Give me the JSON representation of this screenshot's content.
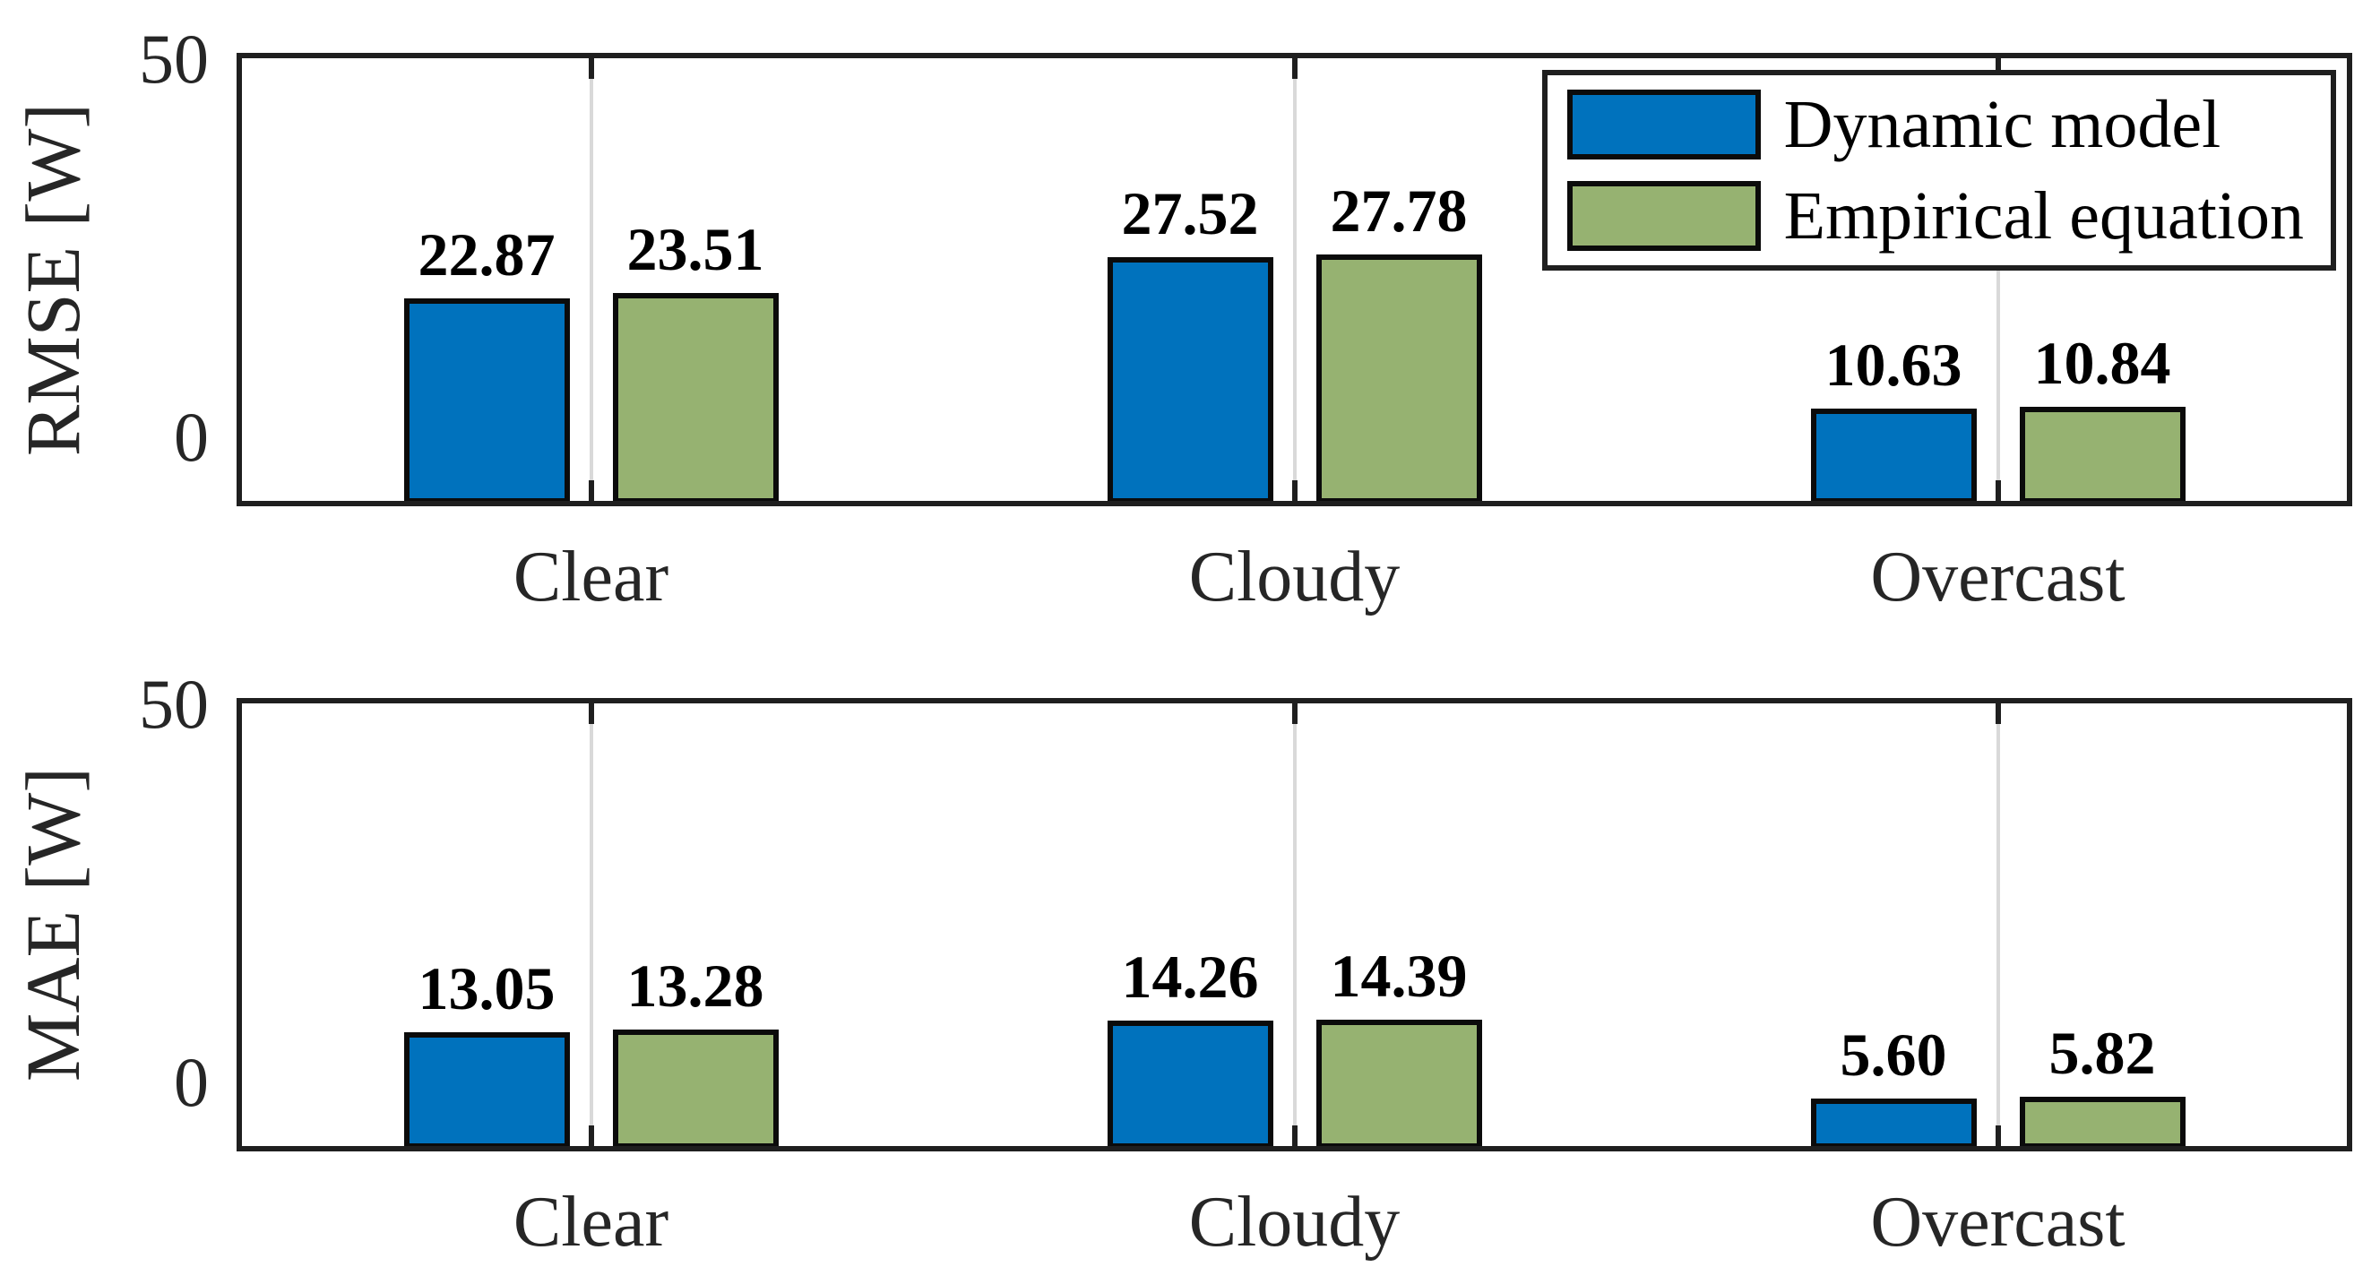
{
  "figure": {
    "background": "#ffffff",
    "colors": {
      "dynamic_model": "#0072BD",
      "empirical_equation": "#96B271",
      "axis": "#1f1f1f",
      "gridline": "#d9d9d9",
      "tick_label": "#262626",
      "value_label": "#000000"
    },
    "legend": {
      "position": "top-right of RMSE panel",
      "items": [
        {
          "label": "Dynamic model",
          "color": "#0072BD"
        },
        {
          "label": "Empirical equation",
          "color": "#96B271"
        }
      ]
    }
  },
  "chart_data": [
    {
      "type": "bar",
      "panel": "top",
      "title": "",
      "xlabel": "",
      "ylabel": "RMSE [W]",
      "ylim": [
        0,
        50
      ],
      "yticks": [
        "50",
        "0"
      ],
      "grid": "vertical gridline at each category center",
      "legend_position": "top-right inside plot",
      "categories": [
        "Clear",
        "Cloudy",
        "Overcast"
      ],
      "series": [
        {
          "name": "Dynamic model",
          "values": [
            22.87,
            27.52,
            10.63
          ],
          "labels": [
            "22.87",
            "27.52",
            "10.63"
          ]
        },
        {
          "name": "Empirical equation",
          "values": [
            23.51,
            27.78,
            10.84
          ],
          "labels": [
            "23.51",
            "27.78",
            "10.84"
          ]
        }
      ]
    },
    {
      "type": "bar",
      "panel": "bottom",
      "title": "",
      "xlabel": "",
      "ylabel": "MAE [W]",
      "ylim": [
        0,
        50
      ],
      "yticks": [
        "50",
        "0"
      ],
      "grid": "vertical gridline at each category center",
      "categories": [
        "Clear",
        "Cloudy",
        "Overcast"
      ],
      "series": [
        {
          "name": "Dynamic model",
          "values": [
            13.05,
            14.26,
            5.6
          ],
          "labels": [
            "13.05",
            "14.26",
            "5.60"
          ]
        },
        {
          "name": "Empirical equation",
          "values": [
            13.28,
            14.39,
            5.82
          ],
          "labels": [
            "13.28",
            "14.39",
            "5.82"
          ]
        }
      ]
    }
  ]
}
